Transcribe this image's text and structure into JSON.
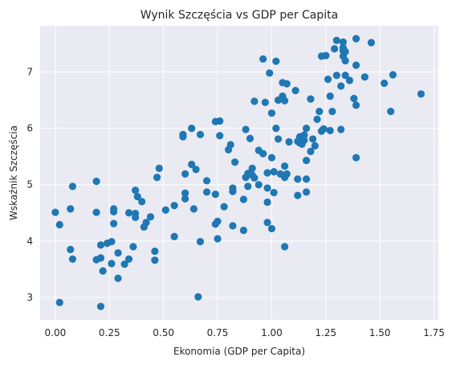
{
  "chart_data": {
    "type": "scatter",
    "title": "Wynik Szczęścia vs GDP per Capita",
    "xlabel": "Ekonomia (GDP per Capita)",
    "ylabel": "Wskaźnik Szczęścia",
    "xlim": [
      -0.07,
      1.77
    ],
    "ylim": [
      2.6,
      7.82
    ],
    "xticks": [
      0.0,
      0.25,
      0.5,
      0.75,
      1.0,
      1.25,
      1.5,
      1.75
    ],
    "xtick_labels": [
      "0.00",
      "0.25",
      "0.50",
      "0.75",
      "1.00",
      "1.25",
      "1.50",
      "1.75"
    ],
    "yticks": [
      3,
      4,
      5,
      6,
      7
    ],
    "ytick_labels": [
      "3",
      "4",
      "5",
      "6",
      "7"
    ],
    "grid": true,
    "colors": {
      "background": "#eaeaf2",
      "grid": "#ffffff",
      "marker": "#1f77b4"
    },
    "points": [
      [
        1.39,
        7.59
      ],
      [
        1.3,
        7.56
      ],
      [
        1.33,
        7.53
      ],
      [
        1.46,
        7.52
      ],
      [
        1.33,
        7.43
      ],
      [
        1.29,
        7.41
      ],
      [
        1.33,
        7.38
      ],
      [
        1.34,
        7.36
      ],
      [
        1.25,
        7.29
      ],
      [
        1.33,
        7.28
      ],
      [
        1.23,
        7.28
      ],
      [
        0.96,
        7.23
      ],
      [
        1.34,
        7.2
      ],
      [
        1.02,
        7.19
      ],
      [
        1.39,
        7.12
      ],
      [
        0.99,
        6.98
      ],
      [
        1.56,
        6.95
      ],
      [
        1.34,
        6.94
      ],
      [
        1.3,
        6.94
      ],
      [
        1.43,
        6.91
      ],
      [
        1.26,
        6.87
      ],
      [
        1.36,
        6.85
      ],
      [
        1.52,
        6.8
      ],
      [
        1.05,
        6.81
      ],
      [
        1.07,
        6.79
      ],
      [
        1.32,
        6.75
      ],
      [
        1.69,
        6.61
      ],
      [
        1.27,
        6.57
      ],
      [
        1.05,
        6.57
      ],
      [
        1.03,
        6.5
      ],
      [
        1.11,
        6.67
      ],
      [
        1.38,
        6.53
      ],
      [
        1.06,
        6.49
      ],
      [
        0.97,
        6.46
      ],
      [
        1.18,
        6.52
      ],
      [
        0.92,
        6.48
      ],
      [
        1.39,
        6.41
      ],
      [
        1.55,
        6.3
      ],
      [
        1.28,
        6.3
      ],
      [
        1.22,
        6.3
      ],
      [
        1.0,
        6.27
      ],
      [
        1.21,
        6.16
      ],
      [
        0.76,
        6.13
      ],
      [
        0.74,
        6.12
      ],
      [
        1.02,
        6.0
      ],
      [
        0.63,
        6.0
      ],
      [
        1.16,
        6.0
      ],
      [
        0.88,
        5.98
      ],
      [
        1.24,
        5.99
      ],
      [
        1.32,
        5.98
      ],
      [
        1.27,
        5.96
      ],
      [
        1.23,
        5.95
      ],
      [
        0.59,
        5.89
      ],
      [
        0.67,
        5.89
      ],
      [
        1.15,
        5.88
      ],
      [
        0.76,
        5.87
      ],
      [
        0.59,
        5.85
      ],
      [
        1.13,
        5.85
      ],
      [
        0.9,
        5.82
      ],
      [
        1.13,
        5.81
      ],
      [
        1.19,
        5.81
      ],
      [
        1.03,
        5.81
      ],
      [
        1.15,
        5.79
      ],
      [
        1.12,
        5.77
      ],
      [
        1.08,
        5.76
      ],
      [
        1.13,
        5.74
      ],
      [
        1.14,
        5.72
      ],
      [
        0.81,
        5.71
      ],
      [
        1.2,
        5.69
      ],
      [
        0.8,
        5.62
      ],
      [
        0.94,
        5.61
      ],
      [
        1.18,
        5.59
      ],
      [
        0.96,
        5.55
      ],
      [
        1.0,
        5.48
      ],
      [
        1.16,
        5.43
      ],
      [
        0.83,
        5.4
      ],
      [
        1.39,
        5.48
      ],
      [
        0.63,
        5.36
      ],
      [
        1.06,
        5.33
      ],
      [
        0.91,
        5.29
      ],
      [
        0.48,
        5.29
      ],
      [
        0.65,
        5.27
      ],
      [
        1.01,
        5.23
      ],
      [
        0.98,
        5.21
      ],
      [
        0.89,
        5.2
      ],
      [
        0.6,
        5.19
      ],
      [
        1.07,
        5.19
      ],
      [
        1.04,
        5.19
      ],
      [
        0.91,
        5.17
      ],
      [
        0.47,
        5.13
      ],
      [
        0.92,
        5.12
      ],
      [
        1.06,
        5.13
      ],
      [
        0.88,
        5.13
      ],
      [
        1.16,
        5.1
      ],
      [
        1.12,
        5.1
      ],
      [
        0.7,
        5.07
      ],
      [
        0.19,
        5.06
      ],
      [
        0.94,
        5.0
      ],
      [
        0.08,
        4.97
      ],
      [
        0.89,
        4.97
      ],
      [
        0.82,
        4.94
      ],
      [
        0.98,
        4.94
      ],
      [
        0.37,
        4.9
      ],
      [
        0.82,
        4.88
      ],
      [
        0.7,
        4.87
      ],
      [
        1.16,
        4.87
      ],
      [
        1.01,
        4.86
      ],
      [
        0.6,
        4.85
      ],
      [
        0.74,
        4.83
      ],
      [
        1.12,
        4.81
      ],
      [
        0.38,
        4.79
      ],
      [
        0.6,
        4.75
      ],
      [
        0.87,
        4.74
      ],
      [
        0.4,
        4.7
      ],
      [
        0.98,
        4.69
      ],
      [
        0.55,
        4.63
      ],
      [
        0.78,
        4.61
      ],
      [
        0.64,
        4.57
      ],
      [
        0.07,
        4.57
      ],
      [
        0.27,
        4.57
      ],
      [
        0.51,
        4.55
      ],
      [
        0.27,
        4.52
      ],
      [
        0.19,
        4.51
      ],
      [
        0.0,
        4.51
      ],
      [
        0.34,
        4.5
      ],
      [
        0.37,
        4.49
      ],
      [
        0.44,
        4.43
      ],
      [
        0.37,
        4.42
      ],
      [
        0.98,
        4.33
      ],
      [
        0.74,
        4.3
      ],
      [
        0.75,
        4.35
      ],
      [
        0.42,
        4.33
      ],
      [
        0.27,
        4.31
      ],
      [
        0.02,
        4.29
      ],
      [
        0.82,
        4.27
      ],
      [
        0.41,
        4.25
      ],
      [
        1.0,
        4.22
      ],
      [
        0.87,
        4.19
      ],
      [
        0.55,
        4.08
      ],
      [
        0.75,
        4.04
      ],
      [
        0.67,
        3.99
      ],
      [
        0.26,
        3.99
      ],
      [
        0.24,
        3.96
      ],
      [
        0.21,
        3.93
      ],
      [
        1.06,
        3.9
      ],
      [
        0.36,
        3.9
      ],
      [
        0.07,
        3.85
      ],
      [
        0.46,
        3.82
      ],
      [
        0.29,
        3.79
      ],
      [
        0.08,
        3.68
      ],
      [
        0.21,
        3.7
      ],
      [
        0.34,
        3.68
      ],
      [
        0.19,
        3.67
      ],
      [
        0.46,
        3.66
      ],
      [
        0.26,
        3.6
      ],
      [
        0.32,
        3.59
      ],
      [
        0.22,
        3.47
      ],
      [
        0.29,
        3.34
      ],
      [
        0.66,
        3.01
      ],
      [
        0.02,
        2.91
      ],
      [
        0.21,
        2.84
      ]
    ]
  }
}
